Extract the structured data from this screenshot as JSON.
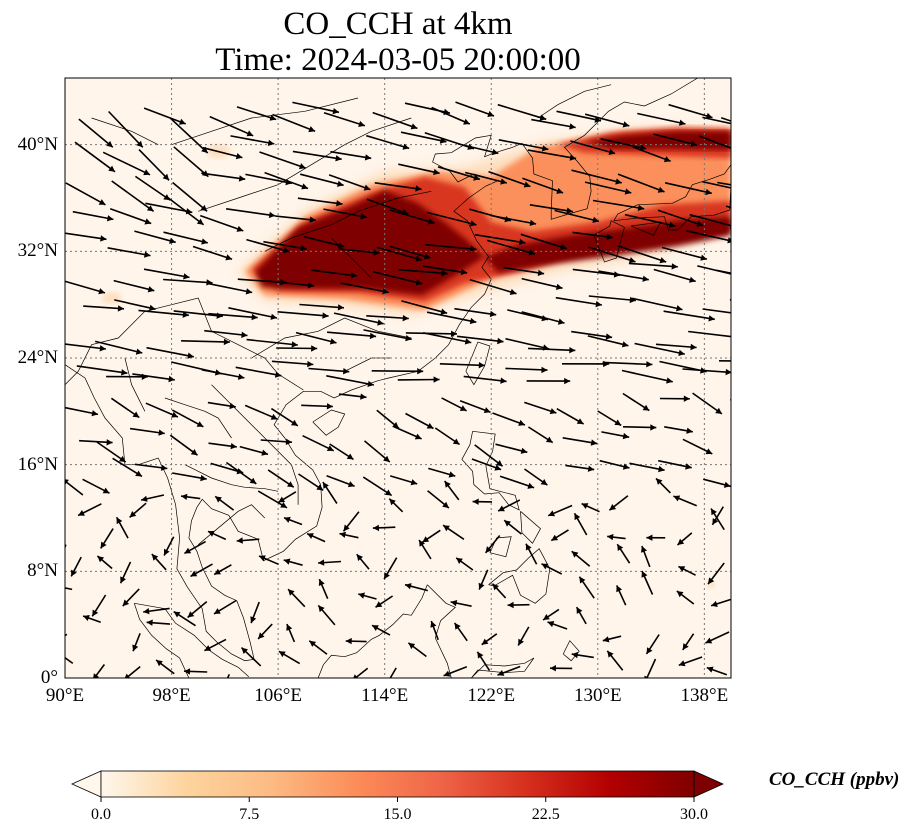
{
  "title": {
    "line1": "CO_CCH at 4km",
    "line2": "Time: 2024-03-05 20:00:00"
  },
  "map": {
    "extent": {
      "lon_min": 90,
      "lon_max": 140,
      "lat_min": 0,
      "lat_max": 45
    },
    "lon_ticks": [
      {
        "value": 90,
        "label": "90°E"
      },
      {
        "value": 98,
        "label": "98°E"
      },
      {
        "value": 106,
        "label": "106°E"
      },
      {
        "value": 114,
        "label": "114°E"
      },
      {
        "value": 122,
        "label": "122°E"
      },
      {
        "value": 130,
        "label": "130°E"
      },
      {
        "value": 138,
        "label": "138°E"
      }
    ],
    "lat_ticks": [
      {
        "value": 40,
        "label": "40°N"
      },
      {
        "value": 32,
        "label": "32°N"
      },
      {
        "value": 24,
        "label": "24°N"
      },
      {
        "value": 16,
        "label": "16°N"
      },
      {
        "value": 8,
        "label": "8°N"
      },
      {
        "value": 0,
        "label": "0°"
      }
    ],
    "gridlines": true,
    "background_color": "#fff5eb",
    "plume_colors": [
      "#fdd9b5",
      "#fc8d59",
      "#d7301f",
      "#7f0000"
    ],
    "vectors": "wind"
  },
  "colorbar": {
    "label": "CO_CCH (ppbv)",
    "min": 0.0,
    "max": 30.0,
    "ticks": [
      "0.0",
      "7.5",
      "15.0",
      "22.5",
      "30.0"
    ],
    "extend": "both",
    "colormap": "OrRd",
    "stops": [
      "#fff7ec",
      "#fdd49e",
      "#fdbb84",
      "#fc8d59",
      "#ef6548",
      "#d7301f",
      "#b30000",
      "#7f0000"
    ]
  }
}
